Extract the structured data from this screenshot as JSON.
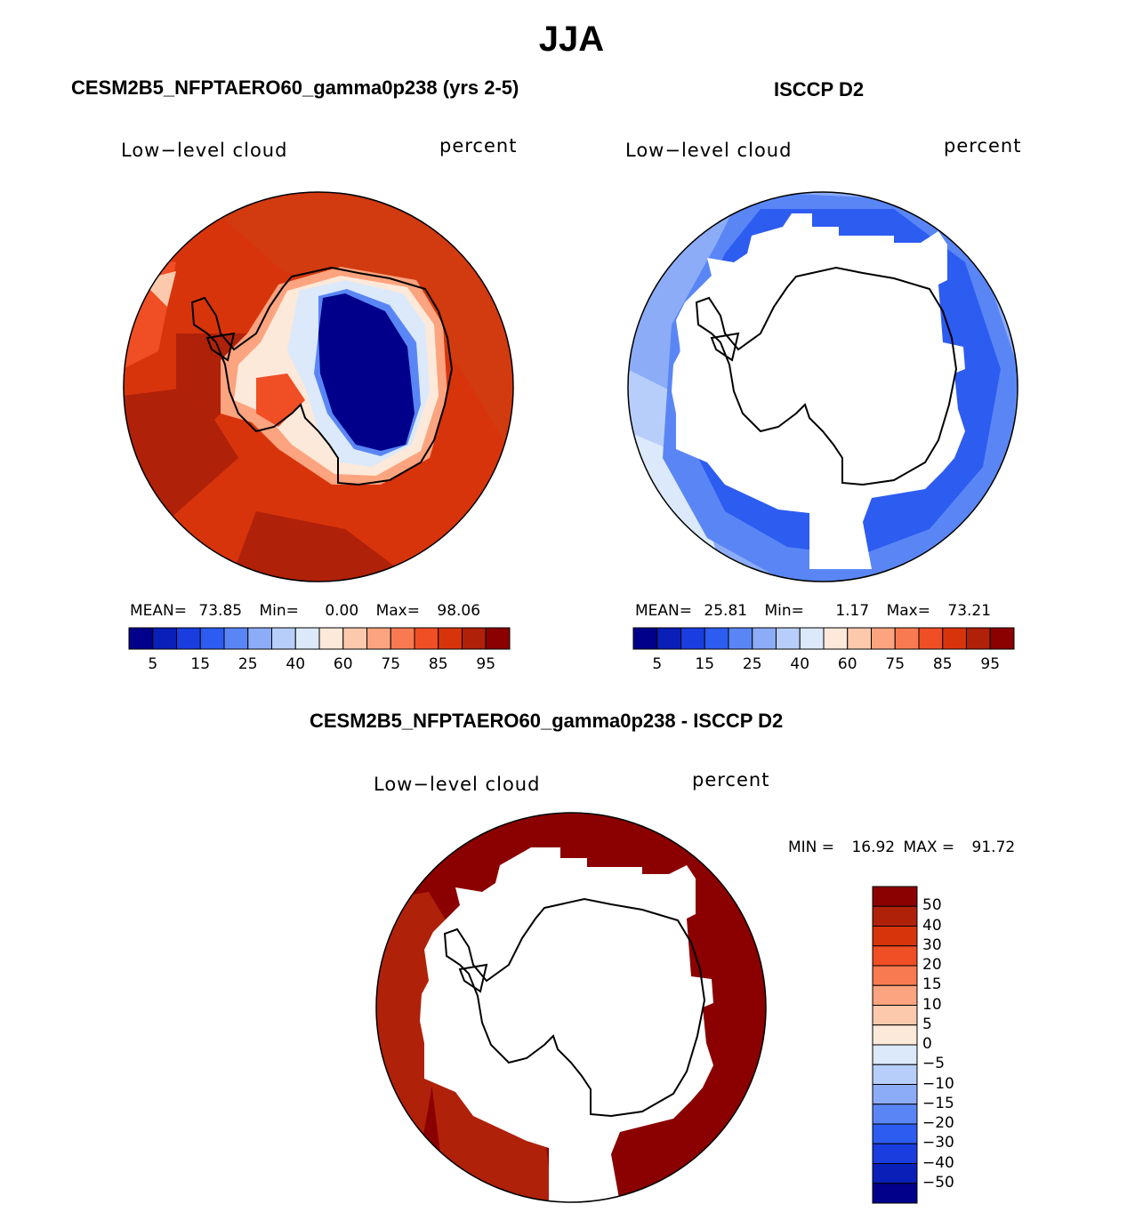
{
  "figure": {
    "title": "JJA",
    "panels": [
      {
        "id": "model",
        "title": "CESM2B5_NFPTAERO60_gamma0p238 (yrs 2-5)",
        "variable": "Low−level cloud",
        "units": "percent",
        "stats": {
          "mean_label": "MEAN=",
          "mean": "73.85",
          "min_label": "Min=",
          "min": "0.00",
          "max_label": "Max=",
          "max": "98.06"
        },
        "colorbar_ticks": [
          "5",
          "15",
          "25",
          "40",
          "60",
          "75",
          "85",
          "95"
        ]
      },
      {
        "id": "obs",
        "title": "ISCCP D2",
        "variable": "Low−level cloud",
        "units": "percent",
        "stats": {
          "mean_label": "MEAN=",
          "mean": "25.81",
          "min_label": "Min=",
          "min": "1.17",
          "max_label": "Max=",
          "max": "73.21"
        },
        "colorbar_ticks": [
          "5",
          "15",
          "25",
          "40",
          "60",
          "75",
          "85",
          "95"
        ]
      },
      {
        "id": "diff",
        "title": "CESM2B5_NFPTAERO60_gamma0p238 - ISCCP D2",
        "variable": "Low−level cloud",
        "units": "percent",
        "stats": {
          "min_label": "MIN =",
          "min": "16.92",
          "max_label": "MAX =",
          "max": "91.72"
        },
        "colorbar_ticks": [
          "50",
          "40",
          "30",
          "20",
          "15",
          "10",
          "5",
          "0",
          "−5",
          "−10",
          "−15",
          "−20",
          "−30",
          "−40",
          "−50"
        ]
      }
    ],
    "colors": {
      "abs_scale": [
        "#00008b",
        "#0a1fb8",
        "#1a3de0",
        "#2d5cf0",
        "#5a86f5",
        "#8cacf7",
        "#b8cefa",
        "#dbe9fb",
        "#fde9d9",
        "#fdc9ad",
        "#fca47f",
        "#f87a50",
        "#f04e24",
        "#d8340c",
        "#b0210a",
        "#8b0000"
      ],
      "diff_scale": [
        "#8b0000",
        "#b0210a",
        "#d8340c",
        "#f04e24",
        "#f87a50",
        "#fca47f",
        "#fdc9ad",
        "#fde9d9",
        "#dbe9fb",
        "#b8cefa",
        "#8cacf7",
        "#5a86f5",
        "#2d5cf0",
        "#1a3de0",
        "#0a1fb8",
        "#00008b"
      ]
    }
  }
}
